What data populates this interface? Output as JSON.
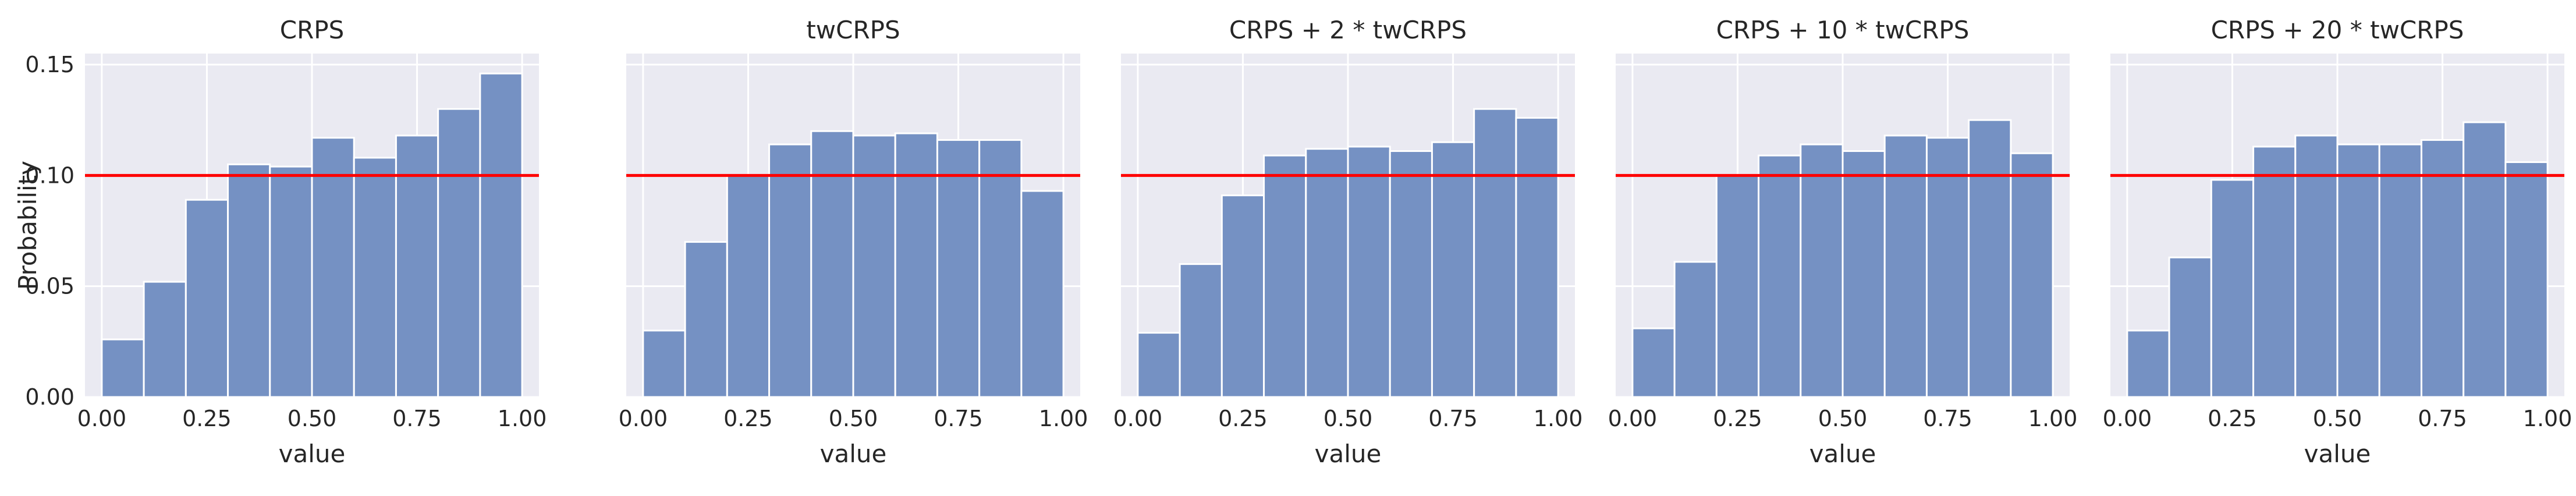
{
  "chart_data": [
    {
      "type": "bar",
      "title": "CRPS",
      "xlabel": "value",
      "ylabel": "Probability",
      "xlim": [
        -0.04,
        1.04
      ],
      "ylim": [
        0,
        0.155
      ],
      "xticks": [
        "0.00",
        "0.25",
        "0.50",
        "0.75",
        "1.00"
      ],
      "yticks": [
        "0.00",
        "0.05",
        "0.10",
        "0.15"
      ],
      "bin_edges": [
        0,
        0.1,
        0.2,
        0.3,
        0.4,
        0.5,
        0.6,
        0.7,
        0.8,
        0.9,
        1.0
      ],
      "values": [
        0.026,
        0.052,
        0.089,
        0.105,
        0.104,
        0.117,
        0.108,
        0.118,
        0.13,
        0.146
      ],
      "reference_line": 0.1,
      "grid": true
    },
    {
      "type": "bar",
      "title": "twCRPS",
      "xlabel": "value",
      "ylabel": "",
      "xlim": [
        -0.04,
        1.04
      ],
      "ylim": [
        0,
        0.155
      ],
      "xticks": [
        "0.00",
        "0.25",
        "0.50",
        "0.75",
        "1.00"
      ],
      "yticks": [],
      "bin_edges": [
        0,
        0.1,
        0.2,
        0.3,
        0.4,
        0.5,
        0.6,
        0.7,
        0.8,
        0.9,
        1.0
      ],
      "values": [
        0.03,
        0.07,
        0.1,
        0.114,
        0.12,
        0.118,
        0.119,
        0.116,
        0.116,
        0.093
      ],
      "reference_line": 0.1,
      "grid": true
    },
    {
      "type": "bar",
      "title": "CRPS + 2 * twCRPS",
      "xlabel": "value",
      "ylabel": "",
      "xlim": [
        -0.04,
        1.04
      ],
      "ylim": [
        0,
        0.155
      ],
      "xticks": [
        "0.00",
        "0.25",
        "0.50",
        "0.75",
        "1.00"
      ],
      "yticks": [],
      "bin_edges": [
        0,
        0.1,
        0.2,
        0.3,
        0.4,
        0.5,
        0.6,
        0.7,
        0.8,
        0.9,
        1.0
      ],
      "values": [
        0.029,
        0.06,
        0.091,
        0.109,
        0.112,
        0.113,
        0.111,
        0.115,
        0.13,
        0.126
      ],
      "reference_line": 0.1,
      "grid": true
    },
    {
      "type": "bar",
      "title": "CRPS + 10 * twCRPS",
      "xlabel": "value",
      "ylabel": "",
      "xlim": [
        -0.04,
        1.04
      ],
      "ylim": [
        0,
        0.155
      ],
      "xticks": [
        "0.00",
        "0.25",
        "0.50",
        "0.75",
        "1.00"
      ],
      "yticks": [],
      "bin_edges": [
        0,
        0.1,
        0.2,
        0.3,
        0.4,
        0.5,
        0.6,
        0.7,
        0.8,
        0.9,
        1.0
      ],
      "values": [
        0.031,
        0.061,
        0.1,
        0.109,
        0.114,
        0.111,
        0.118,
        0.117,
        0.125,
        0.11
      ],
      "reference_line": 0.1,
      "grid": true
    },
    {
      "type": "bar",
      "title": "CRPS + 20 * twCRPS",
      "xlabel": "value",
      "ylabel": "",
      "xlim": [
        -0.04,
        1.04
      ],
      "ylim": [
        0,
        0.155
      ],
      "xticks": [
        "0.00",
        "0.25",
        "0.50",
        "0.75",
        "1.00"
      ],
      "yticks": [],
      "bin_edges": [
        0,
        0.1,
        0.2,
        0.3,
        0.4,
        0.5,
        0.6,
        0.7,
        0.8,
        0.9,
        1.0
      ],
      "values": [
        0.03,
        0.063,
        0.098,
        0.113,
        0.118,
        0.114,
        0.114,
        0.116,
        0.124,
        0.106
      ],
      "reference_line": 0.1,
      "grid": true
    }
  ],
  "colors": {
    "bar_fill": "#7591c3",
    "bar_edge": "#ffffff",
    "axes_background": "#eaeaf2",
    "grid": "#ffffff",
    "reference_line": "#ff0000",
    "text": "#262626"
  }
}
